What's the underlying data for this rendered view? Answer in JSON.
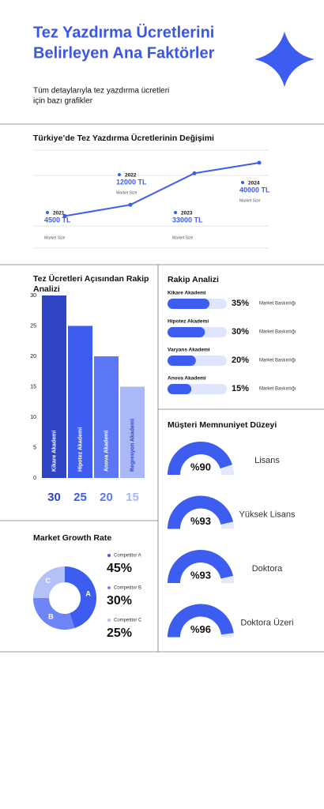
{
  "header": {
    "title": [
      "Tez Yazdırma Ücretlerini",
      "Belirleyen Ana Faktörler"
    ],
    "subtitle": [
      "Tüm detaylarıyla tez yazdırma ücretleri",
      "için bazı grafikler"
    ]
  },
  "chart_data": [
    {
      "type": "line",
      "title": "Türkiye’de Tez Yazdırma Ücretlerinin Değişimi",
      "x": [
        "2021",
        "2022",
        "2023",
        "2024"
      ],
      "values": [
        4500,
        12000,
        33000,
        40000
      ],
      "value_labels": [
        "4500 TL",
        "12000 TL",
        "33000 TL",
        "40000 TL"
      ],
      "notes": [
        "Market Size",
        "Market Size",
        "Market Size",
        "Market Size"
      ],
      "color": "#3d5cf0"
    },
    {
      "type": "bar",
      "title": "Tez Ücretleri Açısından Rakip Analizi",
      "categories": [
        "Kikare Akademi",
        "Hipotez Akademi",
        "Anova Akademi",
        "Regresyon Akademi"
      ],
      "values": [
        30,
        25,
        20,
        15
      ],
      "colors": [
        "#2f45c4",
        "#3d5cf0",
        "#5b77f5",
        "#a9b8f7"
      ],
      "ylim": [
        0,
        30
      ],
      "yticks": [
        0,
        5,
        10,
        15,
        20,
        25,
        30
      ]
    },
    {
      "type": "progress",
      "title": "Rakip Analizi",
      "categories": [
        "Kikare Akademi",
        "Hipotez Akademi",
        "Varyans Akademi",
        "Anova Akademi"
      ],
      "values": [
        35,
        30,
        20,
        15
      ],
      "value_labels": [
        "35%",
        "30%",
        "20%",
        "15%"
      ],
      "notes": [
        "Market Baskınlığı",
        "Market Baskınlığı",
        "Market Baskınlığı",
        "Market Baskınlığı"
      ],
      "color": "#3d5cf0"
    },
    {
      "type": "gauge",
      "title": "Müşteri Memnuniyet Düzeyi",
      "categories": [
        "Lisans",
        "Yüksek Lisans",
        "Doktora",
        "Doktora Üzeri"
      ],
      "values": [
        90,
        93,
        93,
        96
      ],
      "value_labels": [
        "%90",
        "%93",
        "%93",
        "%96"
      ],
      "color": "#3d5cf0"
    },
    {
      "type": "pie",
      "title": "Market Growth Rate",
      "categories": [
        "Competitor A",
        "Competitor B",
        "Competitor C"
      ],
      "slice_labels": [
        "A",
        "B",
        "C"
      ],
      "values": [
        45,
        30,
        25
      ],
      "value_labels": [
        "45%",
        "30%",
        "25%"
      ],
      "colors": [
        "#3d5cf0",
        "#6e86f5",
        "#b3c1f8"
      ]
    }
  ]
}
